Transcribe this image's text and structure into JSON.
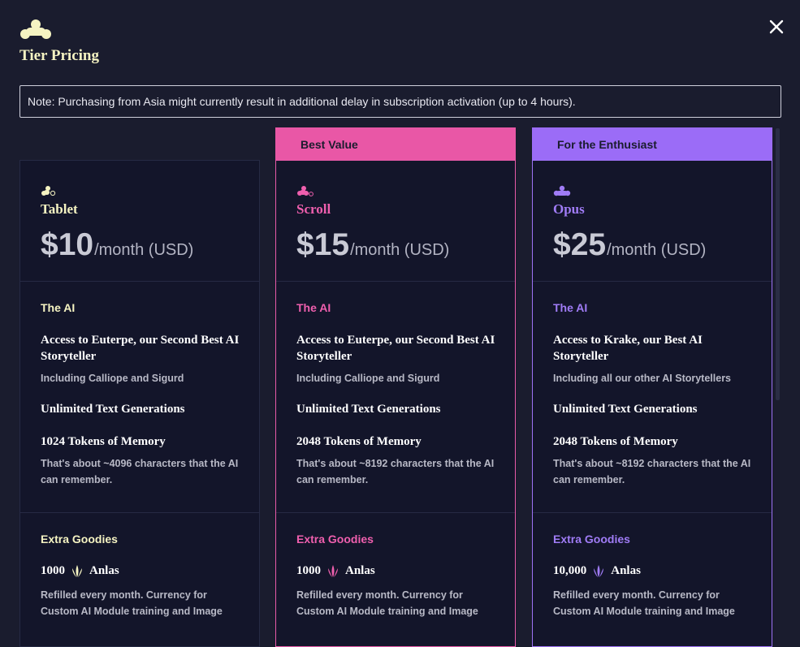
{
  "header": {
    "title": "Tier Pricing"
  },
  "note": "Note: Purchasing from Asia might currently result in additional delay in subscription activation (up to 4 hours).",
  "colors": {
    "cream": "#f5f3c2",
    "pink": "#e957a6",
    "purple": "#9b6cf7",
    "background": "#1a1c2e",
    "card": "#13152a"
  },
  "icons": {
    "logo": "novelai-logo-icon",
    "close": "close-icon",
    "anlas": "anlas-icon"
  },
  "tiers": [
    {
      "banner": "",
      "name": "Tablet",
      "price": "$10",
      "period": "/month (USD)",
      "ai_label": "The AI",
      "access": "Access to Euterpe, our Second Best AI Storyteller",
      "access_sub": "Including Calliope and Sigurd",
      "generations": "Unlimited Text Generations",
      "memory": "1024 Tokens of Memory",
      "memory_sub": "That's about ~4096 characters that the AI can remember.",
      "goodies_label": "Extra Goodies",
      "anlas_amount": "1000",
      "anlas_label": "Anlas",
      "anlas_sub": "Refilled every month. Currency for Custom AI Module training and Image"
    },
    {
      "banner": "Best Value",
      "name": "Scroll",
      "price": "$15",
      "period": "/month (USD)",
      "ai_label": "The AI",
      "access": "Access to Euterpe, our Second Best AI Storyteller",
      "access_sub": "Including Calliope and Sigurd",
      "generations": "Unlimited Text Generations",
      "memory": "2048 Tokens of Memory",
      "memory_sub": "That's about ~8192 characters that the AI can remember.",
      "goodies_label": "Extra Goodies",
      "anlas_amount": "1000",
      "anlas_label": "Anlas",
      "anlas_sub": "Refilled every month. Currency for Custom AI Module training and Image"
    },
    {
      "banner": "For the Enthusiast",
      "name": "Opus",
      "price": "$25",
      "period": "/month (USD)",
      "ai_label": "The AI",
      "access": "Access to Krake, our Best AI Storyteller",
      "access_sub": "Including all our other AI Storytellers",
      "generations": "Unlimited Text Generations",
      "memory": "2048 Tokens of Memory",
      "memory_sub": "That's about ~8192 characters that the AI can remember.",
      "goodies_label": "Extra Goodies",
      "anlas_amount": "10,000",
      "anlas_label": "Anlas",
      "anlas_sub": "Refilled every month. Currency for Custom AI Module training and Image"
    }
  ]
}
